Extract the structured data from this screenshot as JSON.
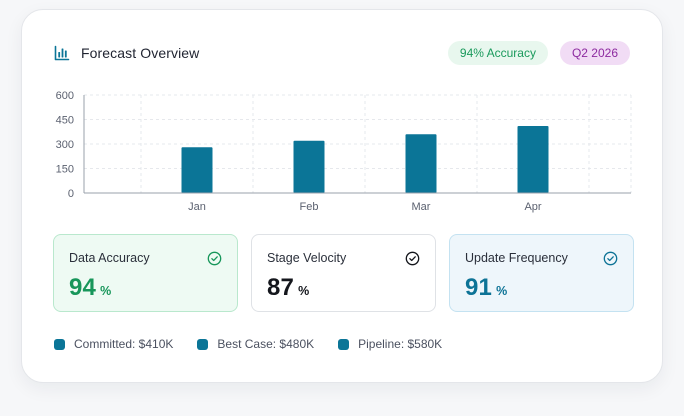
{
  "header": {
    "title": "Forecast Overview",
    "title_icon": "bar-chart-icon",
    "accuracy_badge": "94% Accuracy",
    "period_badge": "Q2 2026"
  },
  "chart_data": {
    "type": "bar",
    "categories": [
      "Jan",
      "Feb",
      "Mar",
      "Apr"
    ],
    "values": [
      280,
      320,
      360,
      410
    ],
    "yticks": [
      0,
      150,
      300,
      450,
      600
    ],
    "ylim": [
      0,
      600
    ],
    "title": "",
    "xlabel": "",
    "ylabel": "",
    "grid": true,
    "bar_color": "#0b7597"
  },
  "metrics": [
    {
      "label": "Data Accuracy",
      "value": "94",
      "unit": "%",
      "icon": "check-circle-icon",
      "color": "#17965a"
    },
    {
      "label": "Stage Velocity",
      "value": "87",
      "unit": "%",
      "icon": "check-circle-icon",
      "color": "#14161c"
    },
    {
      "label": "Update Frequency",
      "value": "91",
      "unit": "%",
      "icon": "check-circle-icon",
      "color": "#0d7396"
    }
  ],
  "legend": [
    {
      "label": "Committed: $410K",
      "color": "#0b7597"
    },
    {
      "label": "Best Case: $480K",
      "color": "#0b7597"
    },
    {
      "label": "Pipeline: $580K",
      "color": "#0b7597"
    }
  ]
}
